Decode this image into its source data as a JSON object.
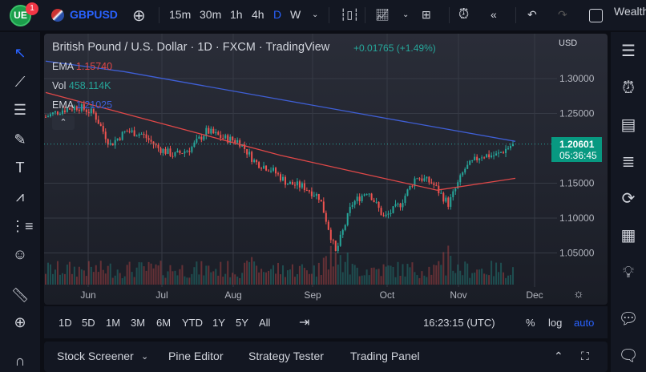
{
  "topbar": {
    "badge": "1",
    "symbol": "GBPUSD",
    "intervals": [
      "15m",
      "30m",
      "1h",
      "4h",
      "D",
      "W"
    ],
    "active_interval": "D",
    "account": "Wealth"
  },
  "chart": {
    "title": "British Pound / U.S. Dollar · 1D · FXCM · TradingView",
    "change": "+0.01765 (+1.49%)",
    "ema1_label": "EMA",
    "ema1_value": "1.15740",
    "vol_label": "Vol",
    "vol_value": "458.114K",
    "ema2_label": "EMA",
    "ema2_value": "1.21025",
    "currency": "USD",
    "price_ticks": [
      "1.30000",
      "1.25000",
      "1.15000",
      "1.10000",
      "1.05000"
    ],
    "last_price": "1.20601",
    "countdown": "05:36:45",
    "months": [
      "Jun",
      "Jul",
      "Aug",
      "Sep",
      "Oct",
      "Nov",
      "Dec"
    ],
    "colors": {
      "up": "#26a69a",
      "down": "#ef5350",
      "ema_fast": "#e04848",
      "ema_slow": "#3f5fd6",
      "badge": "#089981"
    }
  },
  "chart_data": {
    "type": "candlestick",
    "ylim": [
      1.03,
      1.34
    ],
    "approx_closes": [
      1.245,
      1.255,
      1.26,
      1.25,
      1.205,
      1.225,
      1.22,
      1.2,
      1.19,
      1.2,
      1.225,
      1.215,
      1.21,
      1.18,
      1.17,
      1.15,
      1.145,
      1.13,
      1.05,
      1.12,
      1.14,
      1.1,
      1.12,
      1.16,
      1.15,
      1.12,
      1.17,
      1.19,
      1.19,
      1.206
    ],
    "ema_slow": [
      1.325,
      1.31,
      1.29,
      1.27,
      1.25,
      1.23,
      1.21
    ],
    "ema_fast": [
      1.28,
      1.25,
      1.22,
      1.19,
      1.165,
      1.14,
      1.157
    ]
  },
  "timeframes": {
    "ranges": [
      "1D",
      "5D",
      "1M",
      "3M",
      "6M",
      "YTD",
      "1Y",
      "5Y",
      "All"
    ],
    "clock": "16:23:15 (UTC)",
    "percent": "%",
    "log": "log",
    "auto": "auto"
  },
  "bottom": {
    "tabs": [
      "Stock Screener",
      "Pine Editor",
      "Strategy Tester",
      "Trading Panel"
    ]
  }
}
